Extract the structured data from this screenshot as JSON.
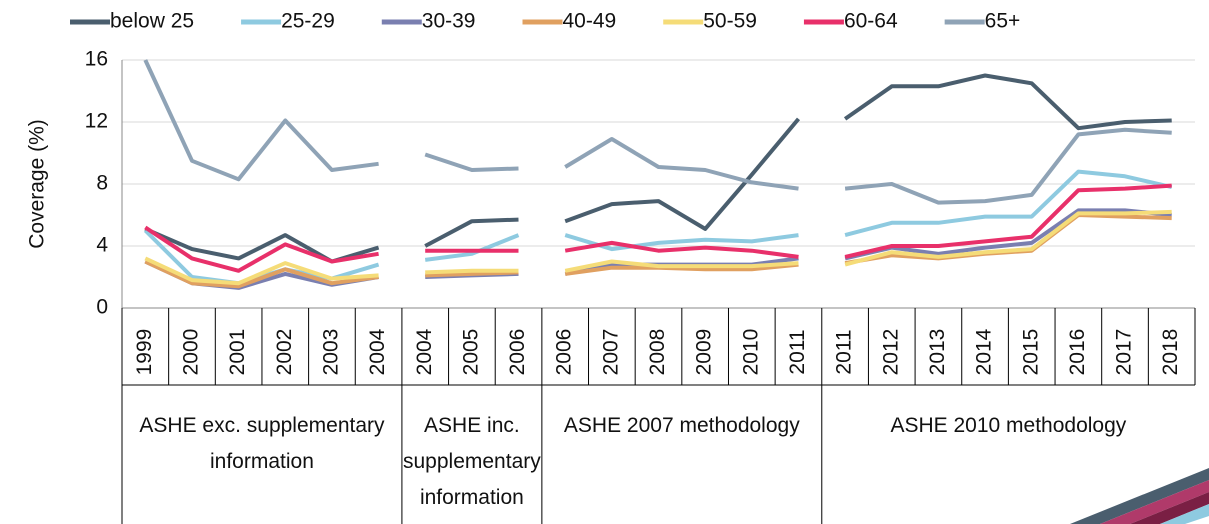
{
  "chart_data": {
    "type": "line",
    "y_label": "Coverage (%)",
    "ylim": [
      0,
      16
    ],
    "yticks": [
      0,
      4,
      8,
      12,
      16
    ],
    "grid": true,
    "legend": "top",
    "groups": [
      {
        "label": "ASHE exc. supplementary information",
        "categories": [
          "1999",
          "2000",
          "2001",
          "2002",
          "2003",
          "2004"
        ]
      },
      {
        "label": "ASHE inc. supplementary information",
        "categories": [
          "2004",
          "2005",
          "2006"
        ]
      },
      {
        "label": "ASHE 2007 methodology",
        "categories": [
          "2006",
          "2007",
          "2008",
          "2009",
          "2010",
          "2011"
        ]
      },
      {
        "label": "ASHE 2010 methodology",
        "categories": [
          "2011",
          "2012",
          "2013",
          "2014",
          "2015",
          "2016",
          "2017",
          "2018"
        ]
      }
    ],
    "series": [
      {
        "name": "below 25",
        "color": "#4a5e6e",
        "values": [
          5.1,
          3.8,
          3.2,
          4.7,
          3.0,
          3.9,
          4.0,
          5.6,
          5.7,
          5.6,
          6.7,
          6.9,
          5.1,
          8.6,
          12.2,
          12.2,
          14.3,
          14.3,
          15.0,
          14.5,
          11.6,
          12.0,
          12.1
        ]
      },
      {
        "name": "25-29",
        "color": "#8ecae0",
        "values": [
          5.0,
          2.0,
          1.6,
          2.5,
          1.9,
          2.8,
          3.1,
          3.5,
          4.7,
          4.7,
          3.8,
          4.2,
          4.4,
          4.3,
          4.7,
          4.7,
          5.5,
          5.5,
          5.9,
          5.9,
          8.8,
          8.5,
          7.8
        ]
      },
      {
        "name": "30-39",
        "color": "#7a7fb0",
        "values": [
          3.0,
          1.6,
          1.3,
          2.2,
          1.5,
          2.0,
          2.0,
          2.1,
          2.2,
          2.2,
          2.8,
          2.8,
          2.8,
          2.8,
          3.2,
          3.2,
          3.9,
          3.5,
          3.9,
          4.2,
          6.3,
          6.3,
          6.0
        ]
      },
      {
        "name": "40-49",
        "color": "#e0a060",
        "values": [
          3.0,
          1.6,
          1.4,
          2.5,
          1.6,
          2.0,
          2.1,
          2.2,
          2.3,
          2.2,
          2.6,
          2.6,
          2.5,
          2.5,
          2.8,
          2.9,
          3.4,
          3.2,
          3.5,
          3.7,
          6.0,
          5.9,
          5.8
        ]
      },
      {
        "name": "50-59",
        "color": "#f5dc78",
        "values": [
          3.2,
          1.8,
          1.6,
          2.9,
          1.9,
          2.1,
          2.3,
          2.4,
          2.4,
          2.4,
          3.0,
          2.7,
          2.7,
          2.7,
          2.9,
          2.8,
          3.6,
          3.3,
          3.6,
          3.8,
          6.1,
          6.1,
          6.2
        ]
      },
      {
        "name": "60-64",
        "color": "#e8306a",
        "values": [
          5.2,
          3.2,
          2.4,
          4.1,
          3.0,
          3.5,
          3.7,
          3.7,
          3.7,
          3.7,
          4.2,
          3.7,
          3.9,
          3.7,
          3.3,
          3.3,
          4.0,
          4.0,
          4.3,
          4.6,
          7.6,
          7.7,
          7.9
        ]
      },
      {
        "name": "65+",
        "color": "#8fa3b6",
        "values": [
          16,
          9.5,
          8.3,
          12.1,
          8.9,
          9.3,
          9.9,
          8.9,
          9.0,
          9.1,
          10.9,
          9.1,
          8.9,
          8.1,
          7.7,
          7.7,
          8.0,
          6.8,
          6.9,
          7.3,
          11.2,
          11.5,
          11.3
        ]
      }
    ]
  }
}
